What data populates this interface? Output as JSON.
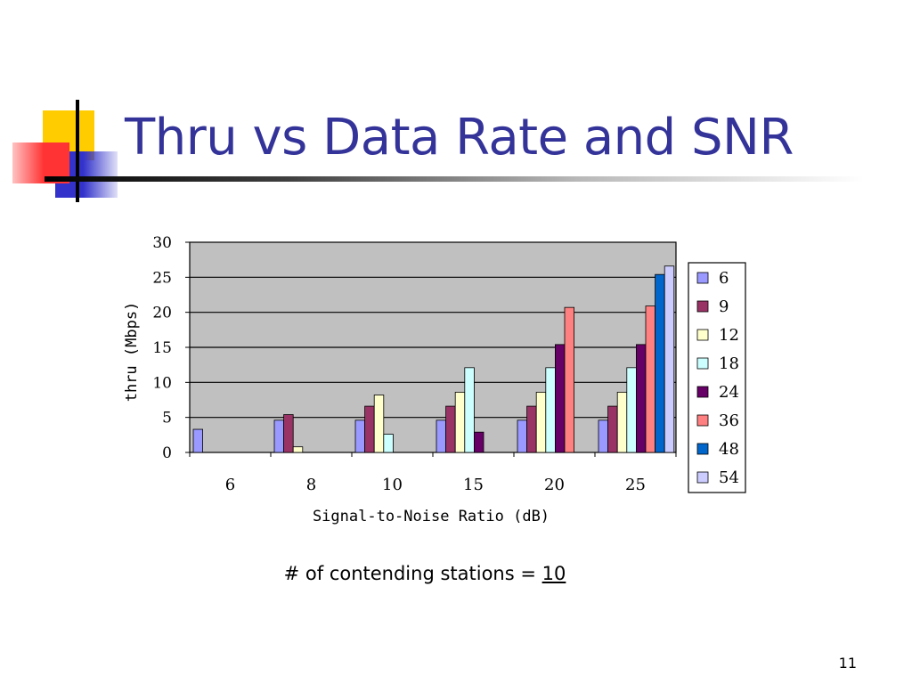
{
  "slide": {
    "title": "Thru vs Data Rate and SNR",
    "caption_prefix": "# of contending stations = ",
    "caption_value": "10",
    "page_number": "11"
  },
  "colors": {
    "title": "#333399",
    "plot_bg": "#c0c0c0"
  },
  "chart_data": {
    "type": "bar",
    "title": "",
    "xlabel": "Signal-to-Noise Ratio (dB)",
    "ylabel": "thru (Mbps)",
    "ylim": [
      0,
      30
    ],
    "yticks": [
      0,
      5,
      10,
      15,
      20,
      25,
      30
    ],
    "grid": true,
    "legend_position": "right",
    "categories": [
      "6",
      "8",
      "10",
      "15",
      "20",
      "25"
    ],
    "series": [
      {
        "name": "6",
        "color": "#9999ff",
        "values": [
          3.3,
          4.6,
          4.6,
          4.6,
          4.6,
          4.6
        ]
      },
      {
        "name": "9",
        "color": "#993366",
        "values": [
          0,
          5.4,
          6.6,
          6.6,
          6.6,
          6.6
        ]
      },
      {
        "name": "12",
        "color": "#ffffcc",
        "values": [
          0,
          0.8,
          8.2,
          8.6,
          8.6,
          8.6
        ]
      },
      {
        "name": "18",
        "color": "#ccffff",
        "values": [
          0,
          0,
          2.6,
          12.1,
          12.1,
          12.1
        ]
      },
      {
        "name": "24",
        "color": "#660066",
        "values": [
          0,
          0,
          0,
          2.9,
          15.4,
          15.4
        ]
      },
      {
        "name": "36",
        "color": "#ff8080",
        "values": [
          0,
          0,
          0,
          0,
          20.7,
          20.9
        ]
      },
      {
        "name": "48",
        "color": "#0066cc",
        "values": [
          0,
          0,
          0,
          0,
          0,
          25.4
        ]
      },
      {
        "name": "54",
        "color": "#ccccff",
        "values": [
          0,
          0,
          0,
          0,
          0,
          26.6
        ]
      }
    ]
  }
}
